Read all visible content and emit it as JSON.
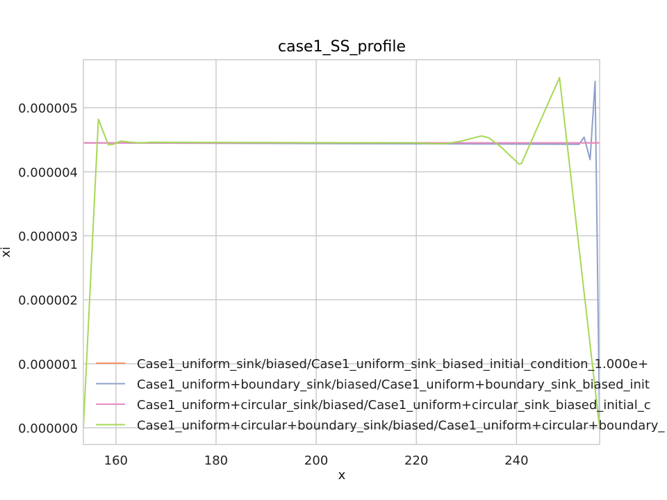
{
  "chart_data": {
    "type": "line",
    "title": "case1_SS_profile",
    "xlabel": "x",
    "ylabel": "xi",
    "xlim": [
      153.5,
      256.6
    ],
    "ylim": [
      -2.6e-07,
      5.75e-06
    ],
    "xticks": [
      160,
      180,
      200,
      220,
      240
    ],
    "xtick_labels": [
      "160",
      "180",
      "200",
      "220",
      "240"
    ],
    "yticks": [
      0,
      1e-06,
      2e-06,
      3e-06,
      4e-06,
      5e-06
    ],
    "ytick_labels": [
      "0.000000",
      "0.000001",
      "0.000002",
      "0.000003",
      "0.000004",
      "0.000005"
    ],
    "grid": true,
    "legend_position": "lower-left",
    "series": [
      {
        "name": "Case1_uniform_sink/biased/Case1_uniform_sink_biased_initial_condition_1.000e+",
        "color": "#fc8d62",
        "x": [
          153.5,
          256.6
        ],
        "y": [
          4.45e-06,
          4.45e-06
        ]
      },
      {
        "name": "Case1_uniform+boundary_sink/biased/Case1_uniform+boundary_sink_biased_init",
        "color": "#8da0cb",
        "x": [
          153.5,
          252.5,
          253.5,
          254.7,
          255.7,
          256.6
        ],
        "y": [
          4.45e-06,
          4.43e-06,
          4.54e-06,
          4.19e-06,
          5.41e-06,
          0.0
        ]
      },
      {
        "name": "Case1_uniform+circular_sink/biased/Case1_uniform+circular_sink_biased_initial_c",
        "color": "#e78ac3",
        "x": [
          153.5,
          256.6
        ],
        "y": [
          4.45e-06,
          4.45e-06
        ]
      },
      {
        "name": "Case1_uniform+circular+boundary_sink/biased/Case1_uniform+circular+boundary_",
        "color": "#a6d854",
        "x": [
          153.5,
          156.5,
          158.5,
          159.5,
          161,
          163,
          165,
          167,
          220,
          222,
          226,
          229,
          233,
          234.5,
          237,
          240.5,
          241,
          248.6,
          256.6
        ],
        "y": [
          0.0,
          4.82e-06,
          4.42e-06,
          4.43e-06,
          4.48e-06,
          4.46e-06,
          4.45e-06,
          4.46e-06,
          4.45e-06,
          4.44e-06,
          4.44e-06,
          4.48e-06,
          4.56e-06,
          4.53e-06,
          4.38e-06,
          4.12e-06,
          4.13e-06,
          5.47e-06,
          0.0
        ]
      }
    ]
  }
}
